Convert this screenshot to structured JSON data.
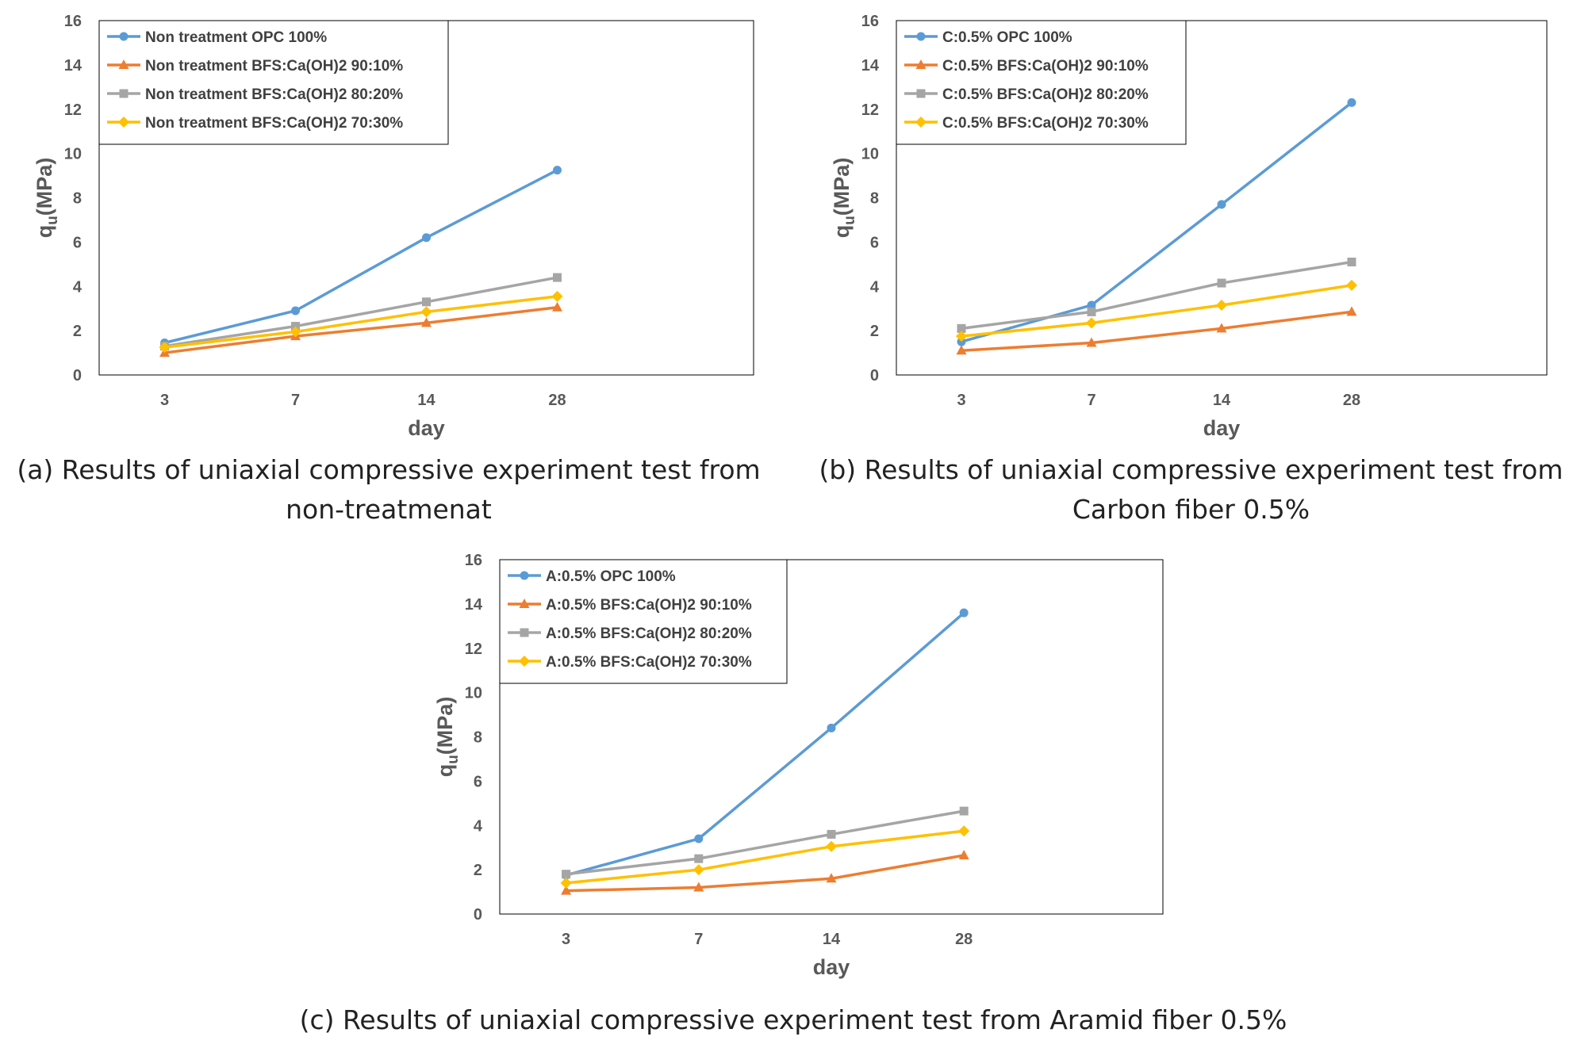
{
  "figure": {
    "captions": [
      {
        "line1": "(a) Results of uniaxial compressive experiment test from",
        "line2": "non-treatmenat"
      },
      {
        "line1": "(b) Results of uniaxial compressive experiment test from",
        "line2": "Carbon fiber 0.5%"
      },
      {
        "line1": "(c) Results of uniaxial compressive experiment test from Aramid fiber 0.5%",
        "line2": ""
      }
    ]
  },
  "series_colors": [
    "#5B9BD5",
    "#ED7D31",
    "#A5A5A5",
    "#FFC000"
  ],
  "series_markers": [
    "circle",
    "triangle",
    "square",
    "diamond"
  ],
  "chart_data": [
    {
      "type": "line",
      "title": "",
      "xlabel": "day",
      "ylabel_main": "q",
      "ylabel_sub": "u",
      "ylabel_rest": "(MPa)",
      "categories": [
        "3",
        "7",
        "14",
        "28"
      ],
      "ylim": [
        0,
        16
      ],
      "yticks": [
        0,
        2,
        4,
        6,
        8,
        10,
        12,
        14,
        16
      ],
      "legend_position": "top-left",
      "series": [
        {
          "name": "Non treatment OPC 100%",
          "values": [
            1.45,
            2.9,
            6.2,
            9.25
          ]
        },
        {
          "name": "Non treatment BFS:Ca(OH)2 90:10%",
          "values": [
            1.0,
            1.75,
            2.35,
            3.05
          ]
        },
        {
          "name": "Non treatment BFS:Ca(OH)2 80:20%",
          "values": [
            1.3,
            2.2,
            3.3,
            4.4
          ]
        },
        {
          "name": "Non treatment BFS:Ca(OH)2 70:30%",
          "values": [
            1.25,
            1.95,
            2.85,
            3.55
          ]
        }
      ]
    },
    {
      "type": "line",
      "title": "",
      "xlabel": "day",
      "ylabel_main": "q",
      "ylabel_sub": "u",
      "ylabel_rest": "(MPa)",
      "categories": [
        "3",
        "7",
        "14",
        "28"
      ],
      "ylim": [
        0,
        16
      ],
      "yticks": [
        0,
        2,
        4,
        6,
        8,
        10,
        12,
        14,
        16
      ],
      "legend_position": "top-left",
      "series": [
        {
          "name": "C:0.5% OPC 100%",
          "values": [
            1.5,
            3.15,
            7.7,
            12.3
          ]
        },
        {
          "name": "C:0.5% BFS:Ca(OH)2 90:10%",
          "values": [
            1.1,
            1.45,
            2.1,
            2.85
          ]
        },
        {
          "name": "C:0.5% BFS:Ca(OH)2 80:20%",
          "values": [
            2.1,
            2.85,
            4.15,
            5.1
          ]
        },
        {
          "name": "C:0.5% BFS:Ca(OH)2 70:30%",
          "values": [
            1.75,
            2.35,
            3.15,
            4.05
          ]
        }
      ]
    },
    {
      "type": "line",
      "title": "",
      "xlabel": "day",
      "ylabel_main": "q",
      "ylabel_sub": "u",
      "ylabel_rest": "(MPa)",
      "categories": [
        "3",
        "7",
        "14",
        "28"
      ],
      "ylim": [
        0,
        16
      ],
      "yticks": [
        0,
        2,
        4,
        6,
        8,
        10,
        12,
        14,
        16
      ],
      "legend_position": "top-left",
      "series": [
        {
          "name": "A:0.5% OPC 100%",
          "values": [
            1.75,
            3.4,
            8.4,
            13.6
          ]
        },
        {
          "name": "A:0.5% BFS:Ca(OH)2 90:10%",
          "values": [
            1.05,
            1.2,
            1.6,
            2.65
          ]
        },
        {
          "name": "A:0.5% BFS:Ca(OH)2 80:20%",
          "values": [
            1.8,
            2.5,
            3.6,
            4.65
          ]
        },
        {
          "name": "A:0.5% BFS:Ca(OH)2 70:30%",
          "values": [
            1.4,
            2.0,
            3.05,
            3.75
          ]
        }
      ]
    }
  ]
}
